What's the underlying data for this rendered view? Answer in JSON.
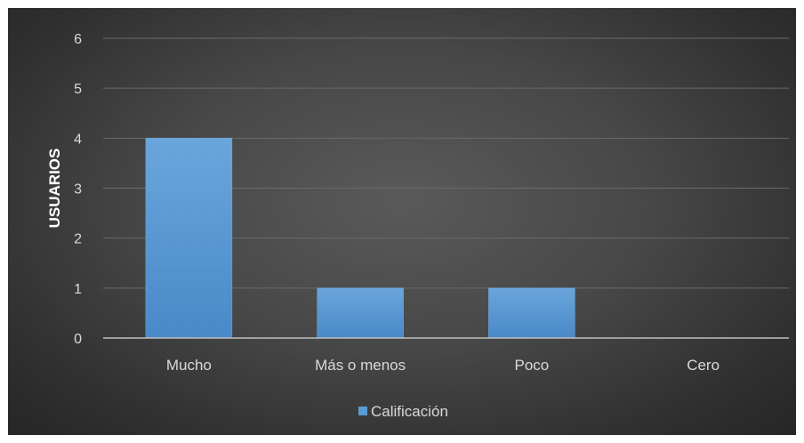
{
  "chart_data": {
    "type": "bar",
    "categories": [
      "Mucho",
      "Más o menos",
      "Poco",
      "Cero"
    ],
    "series": [
      {
        "name": "Calificación",
        "values": [
          4,
          1,
          1,
          0
        ],
        "color": "#5b9bd5"
      }
    ],
    "title": "",
    "xlabel": "",
    "ylabel": "USUARIOS",
    "ylim": [
      0,
      6
    ],
    "yticks": [
      0,
      1,
      2,
      3,
      4,
      5,
      6
    ],
    "grid": true,
    "legend_position": "bottom",
    "colors": {
      "background": "#404040",
      "gridline": "#6a6a6a",
      "axis_line": "#bfbfbf",
      "text": "#d9d9d9"
    }
  }
}
